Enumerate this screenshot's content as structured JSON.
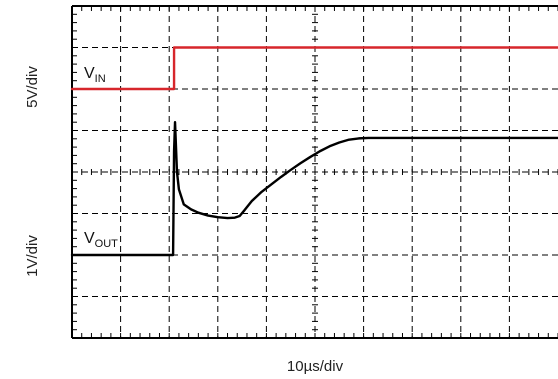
{
  "chart_data": {
    "type": "line",
    "title": "",
    "xlabel": "10µs/div",
    "ylabel_top": "5V/div",
    "ylabel_bottom": "1V/div",
    "grid": true,
    "x_divisions": 10,
    "y_divisions": 8,
    "xlim": [
      0,
      10
    ],
    "ylim": [
      -4,
      4
    ],
    "series": [
      {
        "name": "VIN",
        "label_main": "V",
        "label_sub": "IN",
        "color": "#d7262b",
        "x": [
          0,
          2.1,
          2.1,
          10
        ],
        "y": [
          2,
          2,
          3,
          3
        ]
      },
      {
        "name": "VOUT",
        "label_main": "V",
        "label_sub": "OUT",
        "color": "#000000",
        "x": [
          0,
          2.08,
          2.1,
          2.12,
          2.14,
          2.16,
          2.2,
          2.3,
          2.45,
          2.6,
          2.8,
          3.0,
          3.2,
          3.35,
          3.45,
          3.55,
          3.7,
          3.9,
          4.1,
          4.3,
          4.5,
          4.7,
          4.9,
          5.1,
          5.3,
          5.5,
          5.7,
          5.9,
          6.1,
          6.3,
          6.5,
          7,
          8,
          9,
          10
        ],
        "y": [
          -2,
          -2,
          0.5,
          1.2,
          0.6,
          0,
          -0.42,
          -0.78,
          -0.9,
          -0.98,
          -1.05,
          -1.09,
          -1.11,
          -1.1,
          -1.06,
          -0.92,
          -0.7,
          -0.48,
          -0.3,
          -0.12,
          0.05,
          0.21,
          0.36,
          0.5,
          0.62,
          0.71,
          0.78,
          0.81,
          0.82,
          0.82,
          0.82,
          0.82,
          0.82,
          0.82,
          0.82
        ]
      }
    ]
  }
}
